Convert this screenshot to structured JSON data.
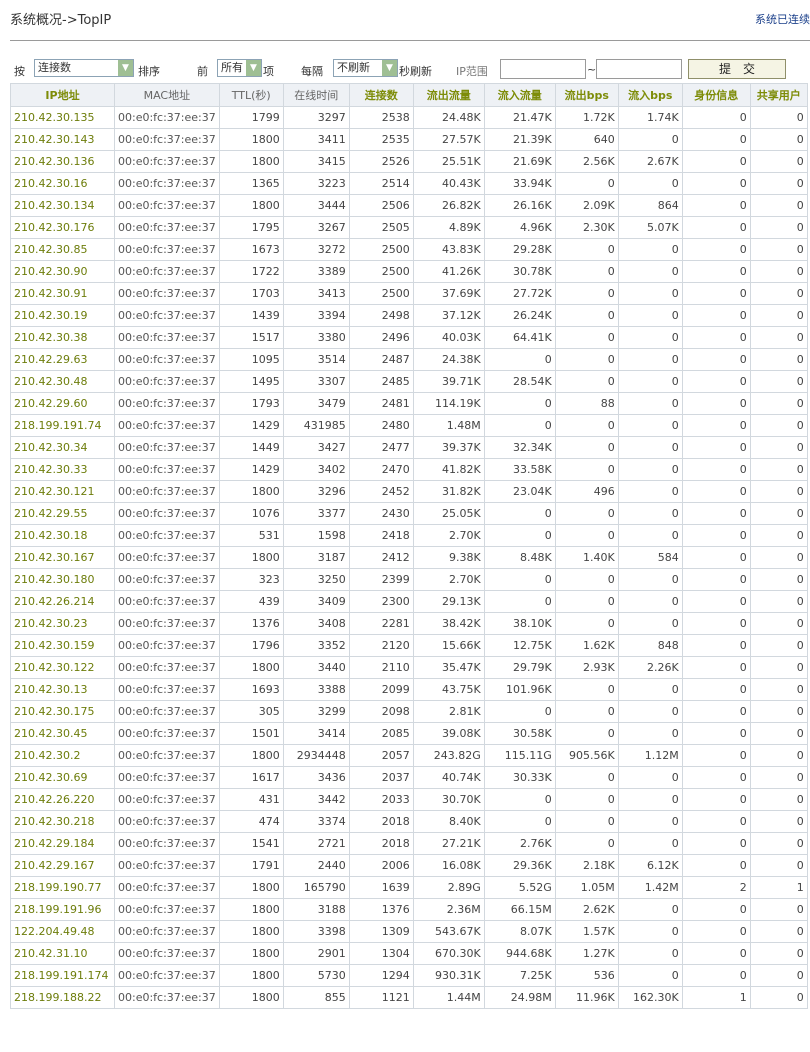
{
  "header": {
    "title": "系统概况->TopIP",
    "status": "系统已连续"
  },
  "controls": {
    "sort_prefix": "按",
    "sort_select": "连接数",
    "sort_suffix": "排序",
    "top_prefix": "前",
    "top_select": "所有",
    "top_suffix": "项",
    "refresh_prefix": "每隔",
    "refresh_select": "不刷新",
    "refresh_suffix": "秒刷新",
    "ip_range_label": "IP范围",
    "ip_range_sep": "~",
    "ip_from": "",
    "ip_to": "",
    "submit_label": "提　交"
  },
  "table": {
    "columns": [
      "IP地址",
      "MAC地址",
      "TTL(秒)",
      "在线时间",
      "连接数",
      "流出流量",
      "流入流量",
      "流出bps",
      "流入bps",
      "身份信息",
      "共享用户"
    ],
    "rows": [
      [
        "210.42.30.135",
        "00:e0:fc:37:ee:37",
        "1799",
        "3297",
        "2538",
        "24.48K",
        "21.47K",
        "1.72K",
        "1.74K",
        "0",
        "0"
      ],
      [
        "210.42.30.143",
        "00:e0:fc:37:ee:37",
        "1800",
        "3411",
        "2535",
        "27.57K",
        "21.39K",
        "640",
        "0",
        "0",
        "0"
      ],
      [
        "210.42.30.136",
        "00:e0:fc:37:ee:37",
        "1800",
        "3415",
        "2526",
        "25.51K",
        "21.69K",
        "2.56K",
        "2.67K",
        "0",
        "0"
      ],
      [
        "210.42.30.16",
        "00:e0:fc:37:ee:37",
        "1365",
        "3223",
        "2514",
        "40.43K",
        "33.94K",
        "0",
        "0",
        "0",
        "0"
      ],
      [
        "210.42.30.134",
        "00:e0:fc:37:ee:37",
        "1800",
        "3444",
        "2506",
        "26.82K",
        "26.16K",
        "2.09K",
        "864",
        "0",
        "0"
      ],
      [
        "210.42.30.176",
        "00:e0:fc:37:ee:37",
        "1795",
        "3267",
        "2505",
        "4.89K",
        "4.96K",
        "2.30K",
        "5.07K",
        "0",
        "0"
      ],
      [
        "210.42.30.85",
        "00:e0:fc:37:ee:37",
        "1673",
        "3272",
        "2500",
        "43.83K",
        "29.28K",
        "0",
        "0",
        "0",
        "0"
      ],
      [
        "210.42.30.90",
        "00:e0:fc:37:ee:37",
        "1722",
        "3389",
        "2500",
        "41.26K",
        "30.78K",
        "0",
        "0",
        "0",
        "0"
      ],
      [
        "210.42.30.91",
        "00:e0:fc:37:ee:37",
        "1703",
        "3413",
        "2500",
        "37.69K",
        "27.72K",
        "0",
        "0",
        "0",
        "0"
      ],
      [
        "210.42.30.19",
        "00:e0:fc:37:ee:37",
        "1439",
        "3394",
        "2498",
        "37.12K",
        "26.24K",
        "0",
        "0",
        "0",
        "0"
      ],
      [
        "210.42.30.38",
        "00:e0:fc:37:ee:37",
        "1517",
        "3380",
        "2496",
        "40.03K",
        "64.41K",
        "0",
        "0",
        "0",
        "0"
      ],
      [
        "210.42.29.63",
        "00:e0:fc:37:ee:37",
        "1095",
        "3514",
        "2487",
        "24.38K",
        "0",
        "0",
        "0",
        "0",
        "0"
      ],
      [
        "210.42.30.48",
        "00:e0:fc:37:ee:37",
        "1495",
        "3307",
        "2485",
        "39.71K",
        "28.54K",
        "0",
        "0",
        "0",
        "0"
      ],
      [
        "210.42.29.60",
        "00:e0:fc:37:ee:37",
        "1793",
        "3479",
        "2481",
        "114.19K",
        "0",
        "88",
        "0",
        "0",
        "0"
      ],
      [
        "218.199.191.74",
        "00:e0:fc:37:ee:37",
        "1429",
        "431985",
        "2480",
        "1.48M",
        "0",
        "0",
        "0",
        "0",
        "0"
      ],
      [
        "210.42.30.34",
        "00:e0:fc:37:ee:37",
        "1449",
        "3427",
        "2477",
        "39.37K",
        "32.34K",
        "0",
        "0",
        "0",
        "0"
      ],
      [
        "210.42.30.33",
        "00:e0:fc:37:ee:37",
        "1429",
        "3402",
        "2470",
        "41.82K",
        "33.58K",
        "0",
        "0",
        "0",
        "0"
      ],
      [
        "210.42.30.121",
        "00:e0:fc:37:ee:37",
        "1800",
        "3296",
        "2452",
        "31.82K",
        "23.04K",
        "496",
        "0",
        "0",
        "0"
      ],
      [
        "210.42.29.55",
        "00:e0:fc:37:ee:37",
        "1076",
        "3377",
        "2430",
        "25.05K",
        "0",
        "0",
        "0",
        "0",
        "0"
      ],
      [
        "210.42.30.18",
        "00:e0:fc:37:ee:37",
        "531",
        "1598",
        "2418",
        "2.70K",
        "0",
        "0",
        "0",
        "0",
        "0"
      ],
      [
        "210.42.30.167",
        "00:e0:fc:37:ee:37",
        "1800",
        "3187",
        "2412",
        "9.38K",
        "8.48K",
        "1.40K",
        "584",
        "0",
        "0"
      ],
      [
        "210.42.30.180",
        "00:e0:fc:37:ee:37",
        "323",
        "3250",
        "2399",
        "2.70K",
        "0",
        "0",
        "0",
        "0",
        "0"
      ],
      [
        "210.42.26.214",
        "00:e0:fc:37:ee:37",
        "439",
        "3409",
        "2300",
        "29.13K",
        "0",
        "0",
        "0",
        "0",
        "0"
      ],
      [
        "210.42.30.23",
        "00:e0:fc:37:ee:37",
        "1376",
        "3408",
        "2281",
        "38.42K",
        "38.10K",
        "0",
        "0",
        "0",
        "0"
      ],
      [
        "210.42.30.159",
        "00:e0:fc:37:ee:37",
        "1796",
        "3352",
        "2120",
        "15.66K",
        "12.75K",
        "1.62K",
        "848",
        "0",
        "0"
      ],
      [
        "210.42.30.122",
        "00:e0:fc:37:ee:37",
        "1800",
        "3440",
        "2110",
        "35.47K",
        "29.79K",
        "2.93K",
        "2.26K",
        "0",
        "0"
      ],
      [
        "210.42.30.13",
        "00:e0:fc:37:ee:37",
        "1693",
        "3388",
        "2099",
        "43.75K",
        "101.96K",
        "0",
        "0",
        "0",
        "0"
      ],
      [
        "210.42.30.175",
        "00:e0:fc:37:ee:37",
        "305",
        "3299",
        "2098",
        "2.81K",
        "0",
        "0",
        "0",
        "0",
        "0"
      ],
      [
        "210.42.30.45",
        "00:e0:fc:37:ee:37",
        "1501",
        "3414",
        "2085",
        "39.08K",
        "30.58K",
        "0",
        "0",
        "0",
        "0"
      ],
      [
        "210.42.30.2",
        "00:e0:fc:37:ee:37",
        "1800",
        "2934448",
        "2057",
        "243.82G",
        "115.11G",
        "905.56K",
        "1.12M",
        "0",
        "0"
      ],
      [
        "210.42.30.69",
        "00:e0:fc:37:ee:37",
        "1617",
        "3436",
        "2037",
        "40.74K",
        "30.33K",
        "0",
        "0",
        "0",
        "0"
      ],
      [
        "210.42.26.220",
        "00:e0:fc:37:ee:37",
        "431",
        "3442",
        "2033",
        "30.70K",
        "0",
        "0",
        "0",
        "0",
        "0"
      ],
      [
        "210.42.30.218",
        "00:e0:fc:37:ee:37",
        "474",
        "3374",
        "2018",
        "8.40K",
        "0",
        "0",
        "0",
        "0",
        "0"
      ],
      [
        "210.42.29.184",
        "00:e0:fc:37:ee:37",
        "1541",
        "2721",
        "2018",
        "27.21K",
        "2.76K",
        "0",
        "0",
        "0",
        "0"
      ],
      [
        "210.42.29.167",
        "00:e0:fc:37:ee:37",
        "1791",
        "2440",
        "2006",
        "16.08K",
        "29.36K",
        "2.18K",
        "6.12K",
        "0",
        "0"
      ],
      [
        "218.199.190.77",
        "00:e0:fc:37:ee:37",
        "1800",
        "165790",
        "1639",
        "2.89G",
        "5.52G",
        "1.05M",
        "1.42M",
        "2",
        "1"
      ],
      [
        "218.199.191.96",
        "00:e0:fc:37:ee:37",
        "1800",
        "3188",
        "1376",
        "2.36M",
        "66.15M",
        "2.62K",
        "0",
        "0",
        "0"
      ],
      [
        "122.204.49.48",
        "00:e0:fc:37:ee:37",
        "1800",
        "3398",
        "1309",
        "543.67K",
        "8.07K",
        "1.57K",
        "0",
        "0",
        "0"
      ],
      [
        "210.42.31.10",
        "00:e0:fc:37:ee:37",
        "1800",
        "2901",
        "1304",
        "670.30K",
        "944.68K",
        "1.27K",
        "0",
        "0",
        "0"
      ],
      [
        "218.199.191.174",
        "00:e0:fc:37:ee:37",
        "1800",
        "5730",
        "1294",
        "930.31K",
        "7.25K",
        "536",
        "0",
        "0",
        "0"
      ],
      [
        "218.199.188.22",
        "00:e0:fc:37:ee:37",
        "1800",
        "855",
        "1121",
        "1.44M",
        "24.98M",
        "11.96K",
        "162.30K",
        "1",
        "0"
      ]
    ]
  }
}
